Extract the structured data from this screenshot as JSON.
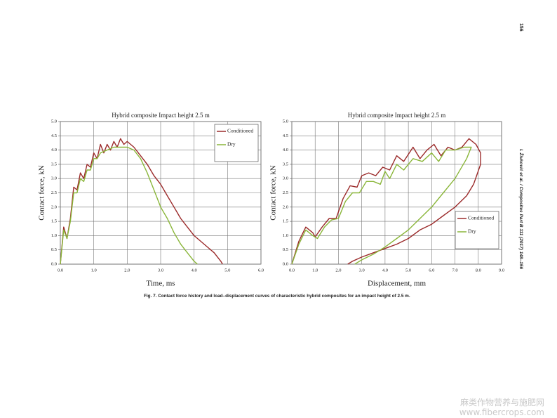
{
  "page": {
    "page_number": "156",
    "running_head": "I. Živković et al. / Composites Part B 111 (2017) 148–156",
    "caption": "Fig. 7. Contact force history and load–displacement curves of characteristic hybrid composites for an impact height of 2.5 m.",
    "watermark": [
      "麻类作物营养与施肥网",
      "www.fibercrops.com"
    ]
  },
  "chart_data": [
    {
      "type": "line",
      "title": "Hybrid composite Impact height 2.5 m",
      "x_label": "Time, ms",
      "y_label": "Contact force, kN",
      "xlim": [
        0,
        6
      ],
      "ylim": [
        0,
        5
      ],
      "xticks": [
        {
          "value": 0,
          "label": "0.0"
        },
        {
          "value": 1,
          "label": "1.0"
        },
        {
          "value": 2,
          "label": "2.0"
        },
        {
          "value": 3,
          "label": "3.0"
        },
        {
          "value": 4,
          "label": "4.0"
        },
        {
          "value": 5,
          "label": "5.0"
        },
        {
          "value": 6,
          "label": "6.0"
        }
      ],
      "yticks": [
        {
          "value": 0,
          "label": "0.0"
        },
        0.5,
        {
          "value": 1,
          "label": "1.0"
        },
        1.5,
        {
          "value": 2,
          "label": "2.0"
        },
        2.5,
        {
          "value": 3,
          "label": "3.0"
        },
        3.5,
        {
          "value": 4,
          "label": "4.0"
        },
        4.5,
        {
          "value": 5,
          "label": "5.0"
        }
      ],
      "grid": true,
      "legend": "upper right",
      "series": [
        {
          "name": "Conditioned",
          "color": "#9b2a2a",
          "x": [
            0,
            0.1,
            0.2,
            0.3,
            0.4,
            0.5,
            0.6,
            0.7,
            0.8,
            0.9,
            1.0,
            1.1,
            1.2,
            1.3,
            1.4,
            1.5,
            1.6,
            1.7,
            1.8,
            1.9,
            2.0,
            2.2,
            2.4,
            2.6,
            2.8,
            3.0,
            3.2,
            3.4,
            3.6,
            3.8,
            4.0,
            4.2,
            4.4,
            4.6,
            4.8,
            4.85
          ],
          "values": [
            0,
            1.3,
            0.9,
            1.6,
            2.7,
            2.6,
            3.2,
            3.0,
            3.5,
            3.4,
            3.9,
            3.7,
            4.2,
            3.9,
            4.2,
            4.0,
            4.3,
            4.1,
            4.4,
            4.2,
            4.3,
            4.1,
            3.8,
            3.5,
            3.1,
            2.8,
            2.4,
            2.0,
            1.6,
            1.3,
            1.0,
            0.8,
            0.6,
            0.4,
            0.1,
            0
          ]
        },
        {
          "name": "Dry",
          "color": "#8ab63a",
          "x": [
            0,
            0.1,
            0.2,
            0.3,
            0.4,
            0.5,
            0.6,
            0.7,
            0.8,
            0.9,
            1.0,
            1.1,
            1.2,
            1.4,
            1.6,
            1.8,
            2.0,
            2.2,
            2.4,
            2.6,
            2.8,
            3.0,
            3.2,
            3.4,
            3.6,
            3.8,
            4.0,
            4.1
          ],
          "values": [
            0,
            1.2,
            0.9,
            1.5,
            2.5,
            2.5,
            3.0,
            2.9,
            3.3,
            3.3,
            3.7,
            3.7,
            3.9,
            4.0,
            4.1,
            4.1,
            4.1,
            4.0,
            3.7,
            3.2,
            2.6,
            2.0,
            1.6,
            1.1,
            0.7,
            0.4,
            0.1,
            0
          ]
        }
      ]
    },
    {
      "type": "line",
      "title": "Hybrid composite Impact height 2.5 m",
      "x_label": "Displacement, mm",
      "y_label": "Contact force, kN",
      "xlim": [
        0,
        9
      ],
      "ylim": [
        0,
        5
      ],
      "xticks": [
        {
          "value": 0,
          "label": "0.0"
        },
        {
          "value": 1,
          "label": "1.0"
        },
        {
          "value": 2,
          "label": "2.0"
        },
        {
          "value": 3,
          "label": "3.0"
        },
        {
          "value": 4,
          "label": "4.0"
        },
        {
          "value": 5,
          "label": "5.0"
        },
        {
          "value": 6,
          "label": "6.0"
        },
        {
          "value": 7,
          "label": "7.0"
        },
        {
          "value": 8,
          "label": "8.0"
        },
        {
          "value": 9,
          "label": "9.0"
        }
      ],
      "yticks": [
        {
          "value": 0,
          "label": "0.0"
        },
        0.5,
        {
          "value": 1,
          "label": "1.0"
        },
        1.5,
        {
          "value": 2,
          "label": "2.0"
        },
        2.5,
        {
          "value": 3,
          "label": "3.0"
        },
        3.5,
        {
          "value": 4,
          "label": "4.0"
        },
        4.5,
        {
          "value": 5,
          "label": "5.0"
        }
      ],
      "grid": true,
      "legend": "lower right",
      "series": [
        {
          "name": "Conditioned",
          "color": "#9b2a2a",
          "x": [
            0,
            0.3,
            0.6,
            0.9,
            1.0,
            1.3,
            1.6,
            1.9,
            2.2,
            2.5,
            2.8,
            3.0,
            3.3,
            3.6,
            3.9,
            4.2,
            4.5,
            4.8,
            5.2,
            5.5,
            5.8,
            6.1,
            6.4,
            6.7,
            7.0,
            7.3,
            7.6,
            7.9,
            8.1,
            8.1,
            7.8,
            7.5,
            7.0,
            6.5,
            6.0,
            5.5,
            5.0,
            4.5,
            4.0,
            3.5,
            3.0,
            2.6,
            2.4
          ],
          "values": [
            0,
            0.8,
            1.3,
            1.1,
            0.95,
            1.3,
            1.6,
            1.6,
            2.3,
            2.75,
            2.7,
            3.1,
            3.2,
            3.1,
            3.4,
            3.3,
            3.8,
            3.6,
            4.1,
            3.7,
            4.0,
            4.2,
            3.8,
            4.1,
            4.0,
            4.1,
            4.4,
            4.2,
            3.9,
            3.5,
            2.8,
            2.4,
            2.0,
            1.7,
            1.4,
            1.2,
            0.9,
            0.7,
            0.55,
            0.4,
            0.25,
            0.1,
            0
          ]
        },
        {
          "name": "Dry",
          "color": "#8ab63a",
          "x": [
            0,
            0.3,
            0.6,
            0.9,
            1.1,
            1.4,
            1.7,
            2.0,
            2.3,
            2.6,
            2.9,
            3.2,
            3.5,
            3.8,
            4.0,
            4.2,
            4.5,
            4.8,
            5.2,
            5.6,
            6.0,
            6.3,
            6.6,
            7.0,
            7.4,
            7.7,
            7.5,
            7.0,
            6.5,
            6.0,
            5.5,
            5.0,
            4.5,
            4.0,
            3.5,
            3.0,
            2.7
          ],
          "values": [
            0,
            0.7,
            1.2,
            1.0,
            0.9,
            1.3,
            1.55,
            1.6,
            2.2,
            2.5,
            2.5,
            2.9,
            2.9,
            2.8,
            3.25,
            3.0,
            3.5,
            3.3,
            3.7,
            3.6,
            3.9,
            3.6,
            4.0,
            4.0,
            4.1,
            4.1,
            3.7,
            3.0,
            2.5,
            2.0,
            1.6,
            1.2,
            0.9,
            0.6,
            0.35,
            0.15,
            0
          ]
        }
      ]
    }
  ]
}
